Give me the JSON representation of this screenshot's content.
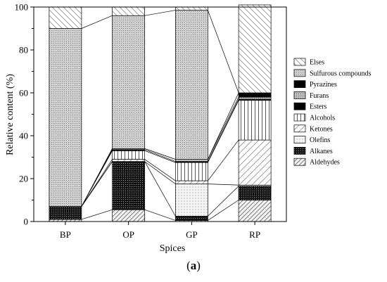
{
  "chart_data": {
    "type": "bar",
    "stacked": true,
    "categories": [
      "BP",
      "OP",
      "GP",
      "RP"
    ],
    "xlabel": "Spices",
    "ylabel": "Relative content (%)",
    "ylim": [
      0,
      100
    ],
    "yticks": [
      0,
      20,
      40,
      60,
      80,
      100
    ],
    "legend_position": "right",
    "connect_stacks": true,
    "series": [
      {
        "name": "Aldehydes",
        "values": [
          1,
          5.5,
          0.5,
          10
        ],
        "pattern": "diag-dense"
      },
      {
        "name": "Alkanes",
        "values": [
          6,
          22.5,
          2,
          6.5
        ],
        "pattern": "dots-dark"
      },
      {
        "name": "Olefins",
        "values": [
          0,
          0,
          15,
          0.5
        ],
        "pattern": "dots-light"
      },
      {
        "name": "Ketones",
        "values": [
          0,
          1,
          1.5,
          21
        ],
        "pattern": "diag-sparse"
      },
      {
        "name": "Alcohols",
        "values": [
          0,
          4,
          8.5,
          18.5
        ],
        "pattern": "vlines"
      },
      {
        "name": "Esters",
        "values": [
          0,
          0.5,
          0.5,
          0.5
        ],
        "pattern": "solid-black"
      },
      {
        "name": "Furans",
        "values": [
          0,
          0.5,
          1,
          1
        ],
        "pattern": "dots-medium"
      },
      {
        "name": "Pyrazines",
        "values": [
          0,
          0,
          0,
          2
        ],
        "pattern": "solid-black"
      },
      {
        "name": "Sulfurous compounds",
        "values": [
          83,
          62,
          69.5,
          0
        ],
        "pattern": "dots-gray"
      },
      {
        "name": "Elses",
        "values": [
          10,
          4,
          1.5,
          41
        ],
        "pattern": "diag-wide"
      }
    ]
  },
  "caption": {
    "prefix": "(",
    "letter": "a",
    "suffix": ")"
  }
}
